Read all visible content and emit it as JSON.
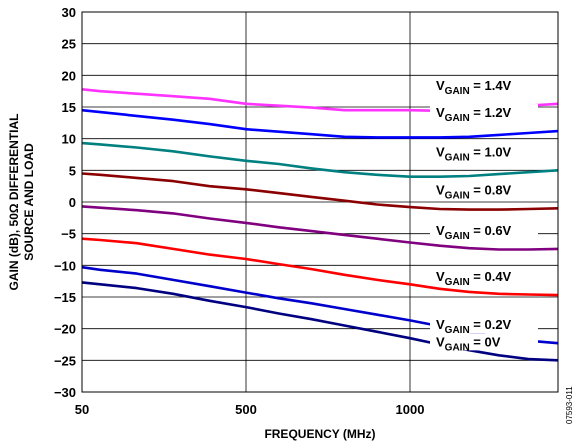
{
  "chart_data": {
    "type": "line",
    "title": "",
    "xlabel": "FREQUENCY (MHz)",
    "ylabel": [
      "GAIN (dB), 50Ω DIFFERENTIAL",
      "SOURCE AND LOAD"
    ],
    "xlim": [
      50,
      1500
    ],
    "ylim": [
      -30,
      30
    ],
    "x_ticks": [
      50,
      500,
      1000
    ],
    "x_tick_labels": [
      "50",
      "500",
      "1000"
    ],
    "y_ticks": [
      -30,
      -25,
      -20,
      -15,
      -10,
      -5,
      0,
      5,
      10,
      15,
      20,
      25,
      30
    ],
    "y_tick_labels": [
      "−30",
      "−25",
      "−20",
      "−15",
      "−10",
      "−5",
      "0",
      "5",
      "10",
      "15",
      "20",
      "25",
      "30"
    ],
    "grid": true,
    "figure_id": "07593-011",
    "x": [
      50,
      100,
      200,
      300,
      400,
      500,
      600,
      700,
      800,
      900,
      1000,
      1100,
      1200,
      1300,
      1400,
      1500
    ],
    "series": [
      {
        "label_main": "V",
        "label_sub": "GAIN",
        "label_value": " = 1.4V",
        "color": "#ff33ff",
        "values": [
          17.8,
          17.5,
          17.1,
          16.7,
          16.3,
          15.5,
          15.2,
          14.9,
          14.5,
          14.5,
          14.5,
          14.4,
          14.5,
          14.8,
          15.2,
          15.5
        ]
      },
      {
        "label_main": "V",
        "label_sub": "GAIN",
        "label_value": " = 1.2V",
        "color": "#0000ff",
        "values": [
          14.5,
          14.2,
          13.6,
          13.0,
          12.3,
          11.5,
          11.1,
          10.7,
          10.3,
          10.2,
          10.2,
          10.2,
          10.3,
          10.6,
          10.9,
          11.2
        ]
      },
      {
        "label_main": "V",
        "label_sub": "GAIN",
        "label_value": " = 1.0V",
        "color": "#008080",
        "values": [
          9.3,
          9.1,
          8.6,
          8.0,
          7.2,
          6.5,
          6.0,
          5.3,
          4.7,
          4.3,
          4.0,
          4.0,
          4.1,
          4.4,
          4.7,
          5.0
        ]
      },
      {
        "label_main": "V",
        "label_sub": "GAIN",
        "label_value": " = 0.8V",
        "color": "#8b0000",
        "values": [
          4.5,
          4.3,
          3.8,
          3.3,
          2.5,
          2.0,
          1.4,
          0.8,
          0.2,
          -0.4,
          -0.8,
          -1.1,
          -1.2,
          -1.2,
          -1.1,
          -1.0
        ]
      },
      {
        "label_main": "V",
        "label_sub": "GAIN",
        "label_value": " = 0.6V",
        "color": "#800080",
        "values": [
          -0.7,
          -0.9,
          -1.3,
          -1.8,
          -2.6,
          -3.3,
          -4.0,
          -4.6,
          -5.2,
          -5.8,
          -6.4,
          -6.9,
          -7.3,
          -7.5,
          -7.5,
          -7.4
        ]
      },
      {
        "label_main": "V",
        "label_sub": "GAIN",
        "label_value": " = 0.4V",
        "color": "#ff0000",
        "values": [
          -5.8,
          -6.0,
          -6.5,
          -7.4,
          -8.3,
          -9.0,
          -9.8,
          -10.6,
          -11.5,
          -12.3,
          -13.0,
          -13.7,
          -14.2,
          -14.5,
          -14.6,
          -14.7
        ]
      },
      {
        "label_main": "V",
        "label_sub": "GAIN",
        "label_value": " = 0.2V",
        "color": "#0000cd",
        "values": [
          -10.3,
          -10.7,
          -11.3,
          -12.3,
          -13.3,
          -14.3,
          -15.2,
          -16.0,
          -16.9,
          -17.8,
          -18.7,
          -19.6,
          -20.5,
          -21.3,
          -21.9,
          -22.3
        ]
      },
      {
        "label_main": "V",
        "label_sub": "GAIN",
        "label_value": " = 0V",
        "color": "#000080",
        "values": [
          -12.7,
          -13.0,
          -13.6,
          -14.5,
          -15.6,
          -16.6,
          -17.6,
          -18.5,
          -19.5,
          -20.5,
          -21.5,
          -22.5,
          -23.4,
          -24.2,
          -24.8,
          -25.0
        ]
      }
    ]
  }
}
